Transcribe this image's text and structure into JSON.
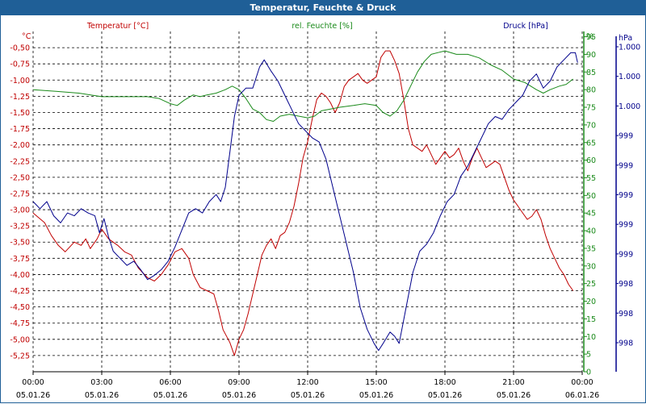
{
  "title": "Temperatur, Feuchte & Druck",
  "colors": {
    "titlebar": "#1f5f97",
    "temperature": "#c00000",
    "humidity": "#1a8a1a",
    "pressure": "#00008b",
    "grid": "#000000"
  },
  "chart_data": {
    "type": "line",
    "title": "Temperatur, Feuchte & Druck",
    "legend": [
      "Temperatur [°C]",
      "rel. Feuchte [%]",
      "Druck [hPa]"
    ],
    "x": {
      "ticks": [
        {
          "time": "00:00",
          "date": "05.01.26"
        },
        {
          "time": "03:00",
          "date": "05.01.26"
        },
        {
          "time": "06:00",
          "date": "05.01.26"
        },
        {
          "time": "09:00",
          "date": "05.01.26"
        },
        {
          "time": "12:00",
          "date": "05.01.26"
        },
        {
          "time": "15:00",
          "date": "05.01.26"
        },
        {
          "time": "18:00",
          "date": "05.01.26"
        },
        {
          "time": "21:00",
          "date": "05.01.26"
        },
        {
          "time": "00:00",
          "date": "06.01.26"
        }
      ],
      "range_hours": [
        0,
        24
      ]
    },
    "axes": {
      "temperature": {
        "unit": "°C",
        "ticks": [
          "-0,50",
          "-0,75",
          "-1,00",
          "-1,25",
          "-1,50",
          "-1,75",
          "-2,00",
          "-2,25",
          "-2,50",
          "-2,75",
          "-3,00",
          "-3,25",
          "-3,50",
          "-3,75",
          "-4,00",
          "-4,25",
          "-4,50",
          "-4,75",
          "-5,00",
          "-5,25"
        ],
        "range": [
          -5.5,
          -0.25
        ]
      },
      "humidity": {
        "unit": "%",
        "ticks": [
          "95",
          "90",
          "85",
          "80",
          "75",
          "70",
          "65",
          "60",
          "55",
          "50",
          "45",
          "40",
          "35",
          "30",
          "25",
          "20",
          "15",
          "10",
          "5",
          "0"
        ],
        "range": [
          0,
          96.5
        ]
      },
      "pressure": {
        "unit": "hPa",
        "ticks": [
          "1.000",
          "1.000",
          "1.000",
          "999",
          "999",
          "999",
          "999",
          "999",
          "998",
          "998",
          "998"
        ],
        "range": [
          998.0,
          1000.4
        ]
      }
    },
    "series": [
      {
        "name": "Temperatur [°C]",
        "axis": "temperature",
        "points": [
          [
            0,
            -3.05
          ],
          [
            0.5,
            -3.2
          ],
          [
            0.8,
            -3.4
          ],
          [
            1.1,
            -3.55
          ],
          [
            1.4,
            -3.65
          ],
          [
            1.8,
            -3.5
          ],
          [
            2.1,
            -3.55
          ],
          [
            2.3,
            -3.45
          ],
          [
            2.5,
            -3.6
          ],
          [
            2.8,
            -3.45
          ],
          [
            3.0,
            -3.3
          ],
          [
            3.3,
            -3.45
          ],
          [
            3.7,
            -3.55
          ],
          [
            4.0,
            -3.65
          ],
          [
            4.3,
            -3.7
          ],
          [
            4.6,
            -3.9
          ],
          [
            5.0,
            -4.05
          ],
          [
            5.3,
            -4.1
          ],
          [
            5.6,
            -4.0
          ],
          [
            5.9,
            -3.85
          ],
          [
            6.2,
            -3.65
          ],
          [
            6.5,
            -3.6
          ],
          [
            6.8,
            -3.75
          ],
          [
            7.0,
            -4.0
          ],
          [
            7.3,
            -4.2
          ],
          [
            7.6,
            -4.25
          ],
          [
            7.9,
            -4.3
          ],
          [
            8.1,
            -4.55
          ],
          [
            8.3,
            -4.85
          ],
          [
            8.6,
            -5.05
          ],
          [
            8.8,
            -5.25
          ],
          [
            9.0,
            -5.0
          ],
          [
            9.2,
            -4.85
          ],
          [
            9.4,
            -4.6
          ],
          [
            9.6,
            -4.3
          ],
          [
            9.8,
            -4.0
          ],
          [
            10.0,
            -3.7
          ],
          [
            10.2,
            -3.55
          ],
          [
            10.4,
            -3.45
          ],
          [
            10.6,
            -3.6
          ],
          [
            10.8,
            -3.4
          ],
          [
            11.0,
            -3.35
          ],
          [
            11.2,
            -3.2
          ],
          [
            11.4,
            -2.95
          ],
          [
            11.6,
            -2.6
          ],
          [
            11.8,
            -2.2
          ],
          [
            12.0,
            -1.95
          ],
          [
            12.2,
            -1.6
          ],
          [
            12.4,
            -1.3
          ],
          [
            12.6,
            -1.2
          ],
          [
            12.8,
            -1.25
          ],
          [
            13.0,
            -1.35
          ],
          [
            13.2,
            -1.5
          ],
          [
            13.4,
            -1.35
          ],
          [
            13.6,
            -1.1
          ],
          [
            13.8,
            -1.0
          ],
          [
            14.0,
            -0.95
          ],
          [
            14.2,
            -0.9
          ],
          [
            14.4,
            -1.0
          ],
          [
            14.6,
            -1.05
          ],
          [
            14.8,
            -1.0
          ],
          [
            15.0,
            -0.95
          ],
          [
            15.2,
            -0.65
          ],
          [
            15.4,
            -0.55
          ],
          [
            15.6,
            -0.55
          ],
          [
            15.8,
            -0.7
          ],
          [
            16.0,
            -0.9
          ],
          [
            16.2,
            -1.3
          ],
          [
            16.4,
            -1.75
          ],
          [
            16.6,
            -2.0
          ],
          [
            16.8,
            -2.05
          ],
          [
            17.0,
            -2.1
          ],
          [
            17.2,
            -2.0
          ],
          [
            17.4,
            -2.15
          ],
          [
            17.6,
            -2.3
          ],
          [
            17.8,
            -2.2
          ],
          [
            18.0,
            -2.1
          ],
          [
            18.2,
            -2.2
          ],
          [
            18.4,
            -2.15
          ],
          [
            18.6,
            -2.05
          ],
          [
            18.8,
            -2.25
          ],
          [
            19.0,
            -2.4
          ],
          [
            19.2,
            -2.2
          ],
          [
            19.4,
            -2.05
          ],
          [
            19.6,
            -2.2
          ],
          [
            19.8,
            -2.35
          ],
          [
            20.0,
            -2.3
          ],
          [
            20.2,
            -2.25
          ],
          [
            20.4,
            -2.3
          ],
          [
            20.6,
            -2.5
          ],
          [
            20.8,
            -2.7
          ],
          [
            21.0,
            -2.85
          ],
          [
            21.2,
            -2.95
          ],
          [
            21.4,
            -3.05
          ],
          [
            21.6,
            -3.15
          ],
          [
            21.8,
            -3.1
          ],
          [
            22.0,
            -3.0
          ],
          [
            22.2,
            -3.15
          ],
          [
            22.4,
            -3.4
          ],
          [
            22.6,
            -3.6
          ],
          [
            22.8,
            -3.75
          ],
          [
            23.0,
            -3.9
          ],
          [
            23.2,
            -4.0
          ],
          [
            23.4,
            -4.15
          ],
          [
            23.6,
            -4.25
          ]
        ]
      },
      {
        "name": "rel. Feuchte [%]",
        "axis": "humidity",
        "points": [
          [
            0,
            80
          ],
          [
            1.0,
            79.5
          ],
          [
            2.0,
            79
          ],
          [
            3.0,
            78
          ],
          [
            4.0,
            78
          ],
          [
            5.0,
            78
          ],
          [
            5.5,
            77.5
          ],
          [
            6.0,
            76
          ],
          [
            6.3,
            75.5
          ],
          [
            6.6,
            77
          ],
          [
            7.0,
            78.5
          ],
          [
            7.3,
            78
          ],
          [
            7.6,
            78.5
          ],
          [
            8.0,
            79
          ],
          [
            8.4,
            80
          ],
          [
            8.7,
            81
          ],
          [
            9.0,
            80
          ],
          [
            9.3,
            77.5
          ],
          [
            9.6,
            74.5
          ],
          [
            9.9,
            73.5
          ],
          [
            10.2,
            71.5
          ],
          [
            10.5,
            71
          ],
          [
            10.8,
            72.5
          ],
          [
            11.2,
            73
          ],
          [
            11.6,
            72.5
          ],
          [
            12.0,
            72
          ],
          [
            12.3,
            72.5
          ],
          [
            12.6,
            74
          ],
          [
            13.0,
            74.5
          ],
          [
            13.4,
            75
          ],
          [
            14.0,
            75.5
          ],
          [
            14.5,
            76
          ],
          [
            15.0,
            75.5
          ],
          [
            15.3,
            73.5
          ],
          [
            15.6,
            72.5
          ],
          [
            15.9,
            74
          ],
          [
            16.2,
            77
          ],
          [
            16.5,
            81
          ],
          [
            16.8,
            85
          ],
          [
            17.1,
            88
          ],
          [
            17.4,
            90
          ],
          [
            17.7,
            90.5
          ],
          [
            18.0,
            91
          ],
          [
            18.5,
            90
          ],
          [
            19.0,
            90
          ],
          [
            19.5,
            89
          ],
          [
            20.0,
            87
          ],
          [
            20.5,
            85.5
          ],
          [
            21.0,
            83
          ],
          [
            21.5,
            82
          ],
          [
            22.0,
            80
          ],
          [
            22.3,
            79
          ],
          [
            22.6,
            80
          ],
          [
            23.0,
            81
          ],
          [
            23.3,
            81.5
          ],
          [
            23.6,
            83
          ]
        ]
      },
      {
        "name": "Druck [hPa]",
        "axis": "pressure",
        "points": [
          [
            0,
            999.2
          ],
          [
            0.3,
            999.15
          ],
          [
            0.6,
            999.2
          ],
          [
            0.9,
            999.1
          ],
          [
            1.2,
            999.05
          ],
          [
            1.5,
            999.12
          ],
          [
            1.8,
            999.1
          ],
          [
            2.1,
            999.15
          ],
          [
            2.4,
            999.12
          ],
          [
            2.7,
            999.1
          ],
          [
            2.9,
            998.98
          ],
          [
            3.1,
            999.08
          ],
          [
            3.3,
            998.95
          ],
          [
            3.5,
            998.85
          ],
          [
            3.8,
            998.8
          ],
          [
            4.1,
            998.75
          ],
          [
            4.4,
            998.78
          ],
          [
            4.7,
            998.72
          ],
          [
            5.0,
            998.65
          ],
          [
            5.3,
            998.68
          ],
          [
            5.6,
            998.72
          ],
          [
            5.9,
            998.78
          ],
          [
            6.2,
            998.88
          ],
          [
            6.5,
            999.0
          ],
          [
            6.8,
            999.12
          ],
          [
            7.1,
            999.15
          ],
          [
            7.4,
            999.12
          ],
          [
            7.7,
            999.2
          ],
          [
            8.0,
            999.25
          ],
          [
            8.2,
            999.2
          ],
          [
            8.4,
            999.3
          ],
          [
            8.6,
            999.55
          ],
          [
            8.8,
            999.8
          ],
          [
            9.0,
            999.95
          ],
          [
            9.3,
            1000.0
          ],
          [
            9.6,
            1000.0
          ],
          [
            9.9,
            1000.15
          ],
          [
            10.1,
            1000.2
          ],
          [
            10.4,
            1000.12
          ],
          [
            10.7,
            1000.05
          ],
          [
            11.0,
            999.95
          ],
          [
            11.3,
            999.85
          ],
          [
            11.6,
            999.75
          ],
          [
            11.9,
            999.7
          ],
          [
            12.2,
            999.65
          ],
          [
            12.5,
            999.62
          ],
          [
            12.8,
            999.5
          ],
          [
            13.1,
            999.3
          ],
          [
            13.4,
            999.1
          ],
          [
            13.7,
            998.9
          ],
          [
            14.0,
            998.7
          ],
          [
            14.3,
            998.45
          ],
          [
            14.6,
            998.3
          ],
          [
            14.9,
            998.2
          ],
          [
            15.1,
            998.15
          ],
          [
            15.3,
            998.2
          ],
          [
            15.6,
            998.28
          ],
          [
            15.8,
            998.25
          ],
          [
            16.0,
            998.2
          ],
          [
            16.3,
            998.45
          ],
          [
            16.6,
            998.7
          ],
          [
            16.9,
            998.85
          ],
          [
            17.2,
            998.9
          ],
          [
            17.5,
            998.98
          ],
          [
            17.8,
            999.1
          ],
          [
            18.1,
            999.2
          ],
          [
            18.4,
            999.25
          ],
          [
            18.7,
            999.38
          ],
          [
            19.0,
            999.45
          ],
          [
            19.3,
            999.55
          ],
          [
            19.6,
            999.65
          ],
          [
            19.9,
            999.75
          ],
          [
            20.2,
            999.8
          ],
          [
            20.5,
            999.78
          ],
          [
            20.8,
            999.85
          ],
          [
            21.1,
            999.9
          ],
          [
            21.4,
            999.95
          ],
          [
            21.7,
            1000.05
          ],
          [
            22.0,
            1000.1
          ],
          [
            22.3,
            1000.0
          ],
          [
            22.6,
            1000.05
          ],
          [
            22.9,
            1000.15
          ],
          [
            23.2,
            1000.2
          ],
          [
            23.5,
            1000.25
          ],
          [
            23.7,
            1000.25
          ],
          [
            23.8,
            1000.18
          ]
        ]
      }
    ]
  }
}
